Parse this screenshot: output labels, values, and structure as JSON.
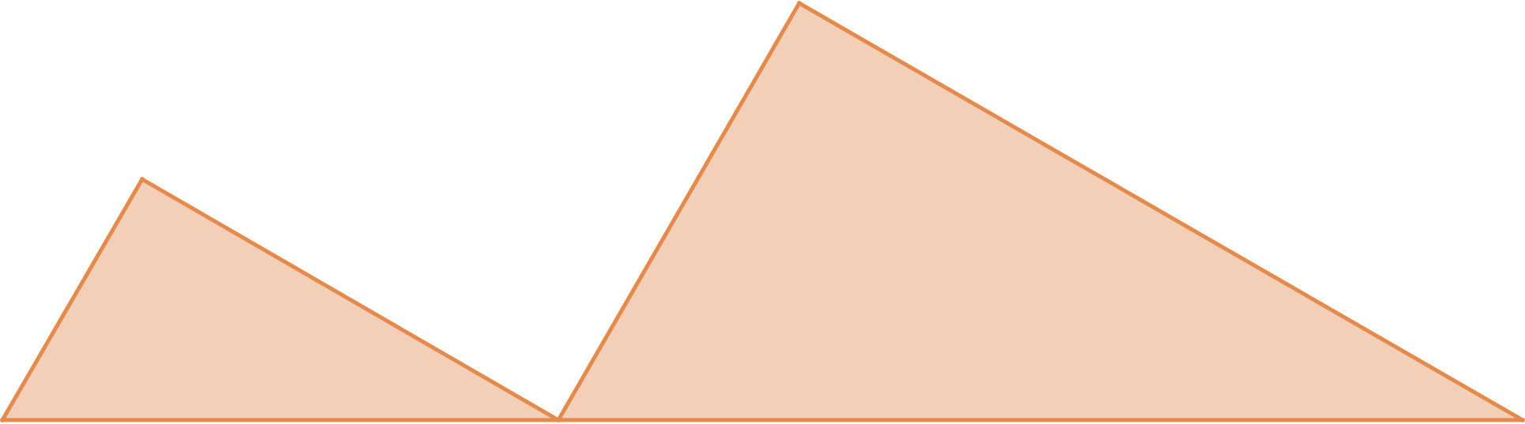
{
  "diagram": {
    "shape_count": 2,
    "style": {
      "fill": "#f4cfb7",
      "stroke": "#e38a4c"
    }
  }
}
